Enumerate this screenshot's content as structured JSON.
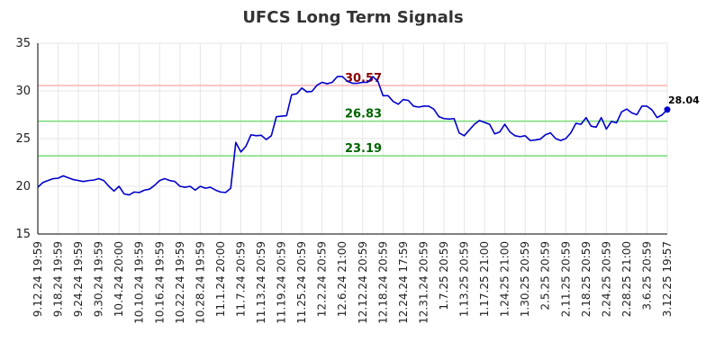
{
  "chart_data": {
    "type": "line",
    "title": "UFCS Long Term Signals",
    "ylim": [
      15,
      35
    ],
    "yticks": [
      "15",
      "20",
      "25",
      "30",
      "35"
    ],
    "grid": true,
    "x_tick_labels": [
      "9.12.24 19:59",
      "9.18.24 19:59",
      "9.24.24 19:59",
      "9.30.24 19:59",
      "10.4.24 20:00",
      "10.10.24 19:59",
      "10.16.24 19:59",
      "10.22.24 19:59",
      "10.28.24 19:59",
      "11.1.24 20:00",
      "11.7.24 20:59",
      "11.13.24 20:59",
      "11.19.24 20:59",
      "11.25.24 20:59",
      "12.2.24 20:59",
      "12.6.24 21:00",
      "12.12.24 20:59",
      "12.18.24 20:59",
      "12.24.24 17:59",
      "12.31.24 20:59",
      "1.7.25 20:59",
      "1.13.25 20:59",
      "1.17.25 21:00",
      "1.24.25 21:00",
      "1.30.25 20:59",
      "2.5.25 20:59",
      "2.11.25 20:59",
      "2.18.25 20:59",
      "2.24.25 20:59",
      "2.28.25 21:00",
      "3.6.25 20:59",
      "3.12.25 19:57"
    ],
    "series": [
      {
        "color": "#0000cc",
        "values": [
          19.9,
          20.4,
          20.6,
          20.8,
          20.85,
          21.1,
          20.9,
          20.7,
          20.6,
          20.5,
          20.6,
          20.65,
          20.8,
          20.6,
          20.0,
          19.5,
          20.0,
          19.2,
          19.1,
          19.4,
          19.35,
          19.6,
          19.7,
          20.1,
          20.6,
          20.8,
          20.6,
          20.5,
          20.0,
          19.9,
          20.0,
          19.6,
          20.0,
          19.8,
          19.9,
          19.6,
          19.4,
          19.35,
          19.8,
          24.6,
          23.6,
          24.2,
          25.4,
          25.3,
          25.35,
          24.9,
          25.3,
          27.3,
          27.35,
          27.4,
          29.6,
          29.7,
          30.3,
          29.9,
          29.95,
          30.6,
          30.9,
          30.75,
          30.9,
          31.5,
          31.5,
          31.0,
          30.8,
          30.8,
          30.9,
          30.9,
          31.5,
          31.0,
          29.5,
          29.5,
          28.9,
          28.6,
          29.1,
          29.0,
          28.4,
          28.3,
          28.4,
          28.4,
          28.1,
          27.3,
          27.1,
          27.05,
          27.1,
          25.6,
          25.3,
          25.9,
          26.5,
          26.9,
          26.7,
          26.5,
          25.5,
          25.7,
          26.5,
          25.7,
          25.3,
          25.2,
          25.3,
          24.8,
          24.85,
          24.95,
          25.4,
          25.6,
          25.0,
          24.8,
          25.0,
          25.6,
          26.6,
          26.5,
          27.2,
          26.3,
          26.2,
          27.2,
          26.0,
          26.8,
          26.65,
          27.8,
          28.1,
          27.7,
          27.5,
          28.4,
          28.4,
          28.0,
          27.2,
          27.5,
          28.04
        ]
      }
    ],
    "levels": [
      {
        "value": 30.57,
        "label": "30.57",
        "line_color": "#ffb3b3",
        "text_color": "#8b0000"
      },
      {
        "value": 26.83,
        "label": "26.83",
        "line_color": "#77dd77",
        "text_color": "#006400"
      },
      {
        "value": 23.19,
        "label": "23.19",
        "line_color": "#77dd77",
        "text_color": "#006400"
      }
    ],
    "last_value_label": "28.04"
  }
}
